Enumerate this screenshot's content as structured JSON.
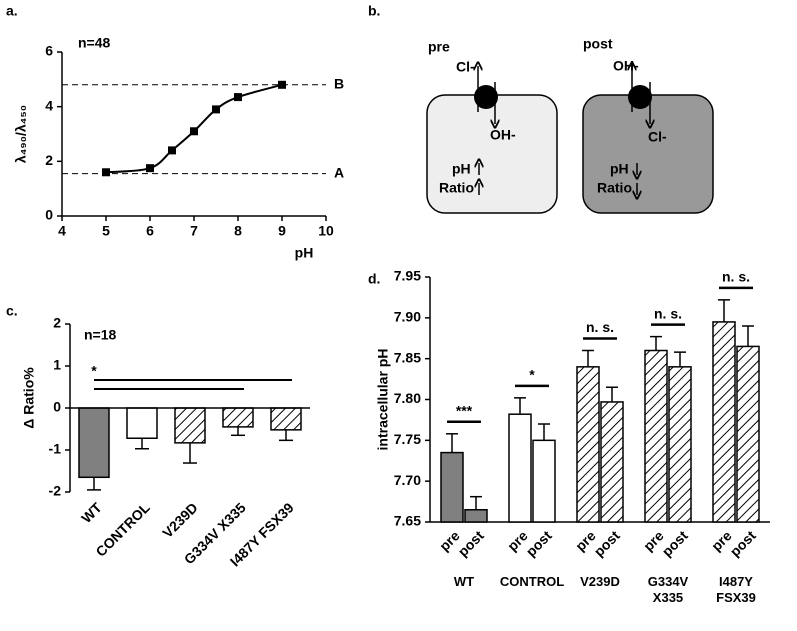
{
  "panel_labels": [
    "a.",
    "b.",
    "c.",
    "d."
  ],
  "chart_data": [
    {
      "type": "line",
      "annotation": "n=48",
      "xlabel": "pH",
      "ylabel": "λ₄₉₀/λ₄₅₀",
      "x": [
        5,
        6,
        6.5,
        7,
        7.5,
        8,
        9
      ],
      "values": [
        1.6,
        1.75,
        2.4,
        3.1,
        3.9,
        4.35,
        4.8
      ],
      "color": "#000000",
      "xlim": [
        4,
        10
      ],
      "xticks": [
        4,
        5,
        6,
        7,
        8,
        9,
        10
      ],
      "ylim": [
        0,
        6
      ],
      "yticks": [
        0,
        2,
        4,
        6
      ],
      "reference_lines": [
        {
          "value": 4.8,
          "label": "B"
        },
        {
          "value": 1.55,
          "label": "A"
        }
      ]
    },
    {
      "type": "bar",
      "annotation": "n=18",
      "ylabel": "Δ Ratio%",
      "categories": [
        "WT",
        "CONTROL",
        "V239D",
        "G334V X335",
        "I487Y FSX39"
      ],
      "values": [
        -1.65,
        -0.72,
        -0.83,
        -0.45,
        -0.52
      ],
      "errors": [
        0.3,
        0.25,
        0.48,
        0.2,
        0.25
      ],
      "colors": [
        "#808080",
        "#ffffff",
        "#ffffff",
        "#ffffff",
        "#ffffff"
      ],
      "hatch": [
        false,
        false,
        true,
        true,
        true
      ],
      "ylim": [
        -2,
        2
      ],
      "yticks": [
        -2,
        -1,
        0,
        1,
        2
      ],
      "significance": {
        "label": "*",
        "spans": [
          [
            0,
            4
          ],
          [
            0,
            3
          ]
        ]
      }
    },
    {
      "type": "grouped_bar",
      "ylabel": "intracellular pH",
      "categories": [
        "WT",
        "CONTROL",
        "V239D",
        "G334V X335",
        "I487Y FSX39"
      ],
      "series": [
        {
          "name": "pre",
          "values": [
            7.735,
            7.782,
            7.84,
            7.86,
            7.895
          ],
          "errors": [
            0.023,
            0.02,
            0.02,
            0.017,
            0.027
          ]
        },
        {
          "name": "post",
          "values": [
            7.665,
            7.75,
            7.797,
            7.84,
            7.865
          ],
          "errors": [
            0.016,
            0.02,
            0.018,
            0.018,
            0.025
          ]
        }
      ],
      "colors": [
        "#808080",
        "#ffffff",
        "#ffffff",
        "#ffffff",
        "#ffffff"
      ],
      "hatch": [
        false,
        false,
        true,
        true,
        true
      ],
      "significance": [
        "***",
        "*",
        "n. s.",
        "n. s.",
        "n. s."
      ],
      "ylim": [
        7.65,
        7.95
      ],
      "yticks": [
        7.65,
        {
          "value": 7.7,
          "label": "7.70"
        },
        7.75,
        {
          "value": 7.8,
          "label": "7.80"
        },
        7.85,
        {
          "value": 7.9,
          "label": "7.90"
        },
        7.95
      ]
    }
  ],
  "diagram": {
    "cells": [
      {
        "label": "pre",
        "out": "Cl-",
        "in": "OH-",
        "ph": "pH",
        "ratio": "Ratio"
      },
      {
        "label": "post",
        "out": "OH-",
        "in": "Cl-",
        "ph": "pH",
        "ratio": "Ratio"
      }
    ]
  }
}
